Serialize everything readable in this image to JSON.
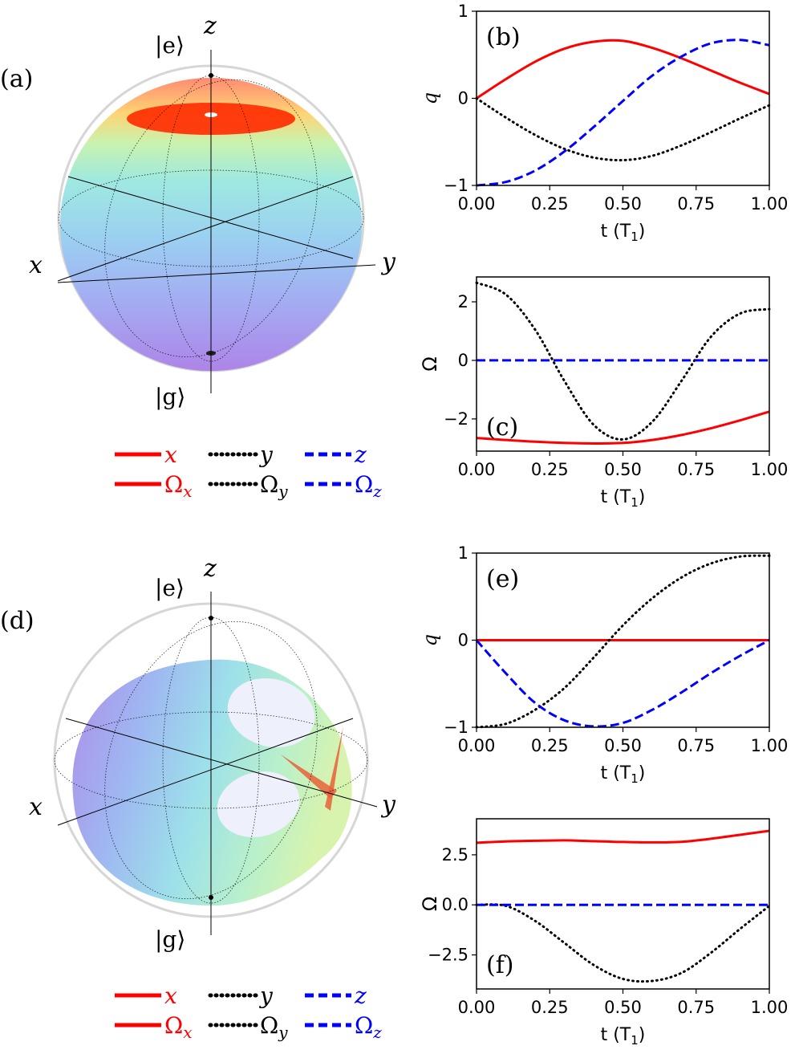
{
  "panels": {
    "a": {
      "label": "(a)",
      "axes": {
        "x": "x",
        "y": "y",
        "z": "z"
      },
      "top_state": "|e⟩",
      "bottom_state": "|g⟩"
    },
    "d": {
      "label": "(d)",
      "axes": {
        "x": "x",
        "y": "y",
        "z": "z"
      },
      "top_state": "|e⟩",
      "bottom_state": "|g⟩"
    }
  },
  "legend": {
    "row1": [
      {
        "text": "x",
        "color": "#ff0000",
        "style": "solid"
      },
      {
        "text": "y",
        "color": "#000000",
        "style": "dotted"
      },
      {
        "text": "z",
        "color": "#0000ff",
        "style": "dashed"
      }
    ],
    "row2": [
      {
        "text": "Ω",
        "sub": "x",
        "color": "#ff0000",
        "style": "solid"
      },
      {
        "text": "Ω",
        "sub": "y",
        "color": "#000000",
        "style": "dotted"
      },
      {
        "text": "Ω",
        "sub": "z",
        "color": "#0000ff",
        "style": "dashed"
      }
    ]
  },
  "colors": {
    "x": "#ff0000",
    "y": "#000000",
    "z": "#0000ff"
  },
  "chart_data": [
    {
      "id": "b",
      "type": "line",
      "panel_label": "(b)",
      "xlabel": "t (T",
      "xlabel_sub": "1",
      "xlabel_end": ")",
      "ylabel": "q",
      "xlim": [
        0,
        1
      ],
      "ylim": [
        -1,
        1
      ],
      "xticks": [
        "0.00",
        "0.25",
        "0.50",
        "0.75",
        "1.00"
      ],
      "yticks": [
        "−1",
        "0",
        "1"
      ],
      "x": [
        0,
        0.1,
        0.2,
        0.3,
        0.4,
        0.5,
        0.6,
        0.7,
        0.8,
        0.9,
        1.0
      ],
      "series": [
        {
          "key": "x",
          "values": [
            0.0,
            0.22,
            0.42,
            0.57,
            0.65,
            0.66,
            0.58,
            0.46,
            0.32,
            0.18,
            0.05
          ]
        },
        {
          "key": "y",
          "values": [
            0.0,
            -0.22,
            -0.42,
            -0.58,
            -0.68,
            -0.71,
            -0.66,
            -0.54,
            -0.39,
            -0.23,
            -0.08
          ]
        },
        {
          "key": "z",
          "values": [
            -1.0,
            -0.96,
            -0.83,
            -0.61,
            -0.33,
            -0.03,
            0.26,
            0.48,
            0.63,
            0.67,
            0.61
          ]
        }
      ]
    },
    {
      "id": "c",
      "type": "line",
      "panel_label": "(c)",
      "xlabel": "t (T",
      "xlabel_sub": "1",
      "xlabel_end": ")",
      "ylabel": "Ω",
      "xlim": [
        0,
        1
      ],
      "ylim": [
        -3.1,
        2.85
      ],
      "xticks": [
        "0.00",
        "0.25",
        "0.50",
        "0.75",
        "1.00"
      ],
      "yticks": [
        "−2",
        "0",
        "2"
      ],
      "x": [
        0,
        0.1,
        0.2,
        0.3,
        0.4,
        0.5,
        0.6,
        0.7,
        0.8,
        0.9,
        1.0
      ],
      "series": [
        {
          "key": "x",
          "values": [
            -2.65,
            -2.72,
            -2.78,
            -2.82,
            -2.84,
            -2.82,
            -2.72,
            -2.55,
            -2.32,
            -2.05,
            -1.75
          ]
        },
        {
          "key": "y",
          "values": [
            2.65,
            2.25,
            1.05,
            -0.7,
            -2.2,
            -2.7,
            -2.1,
            -0.7,
            0.8,
            1.6,
            1.75
          ]
        },
        {
          "key": "z",
          "values": [
            0,
            0,
            0,
            0,
            0,
            0,
            0,
            0,
            0,
            0,
            0
          ]
        }
      ]
    },
    {
      "id": "e",
      "type": "line",
      "panel_label": "(e)",
      "xlabel": "t (T",
      "xlabel_sub": "1",
      "xlabel_end": ")",
      "ylabel": "q",
      "xlim": [
        0,
        1
      ],
      "ylim": [
        -1,
        1
      ],
      "xticks": [
        "0.00",
        "0.25",
        "0.50",
        "0.75",
        "1.00"
      ],
      "yticks": [
        "−1",
        "0",
        "1"
      ],
      "x": [
        0,
        0.1,
        0.2,
        0.3,
        0.4,
        0.5,
        0.6,
        0.7,
        0.8,
        0.9,
        1.0
      ],
      "series": [
        {
          "key": "x",
          "values": [
            0,
            0,
            0,
            0,
            0,
            0,
            0,
            0,
            0,
            0,
            0
          ]
        },
        {
          "key": "y",
          "values": [
            -1.0,
            -0.96,
            -0.8,
            -0.55,
            -0.2,
            0.17,
            0.48,
            0.72,
            0.88,
            0.96,
            0.97
          ]
        },
        {
          "key": "z",
          "values": [
            0.0,
            -0.38,
            -0.72,
            -0.92,
            -0.99,
            -0.95,
            -0.8,
            -0.6,
            -0.38,
            -0.18,
            0.0
          ]
        }
      ]
    },
    {
      "id": "f",
      "type": "line",
      "panel_label": "(f)",
      "xlabel": "t (T",
      "xlabel_sub": "1",
      "xlabel_end": ")",
      "ylabel": "Ω",
      "xlim": [
        0,
        1
      ],
      "ylim": [
        -4.2,
        4.3
      ],
      "xticks": [
        "0.00",
        "0.25",
        "0.50",
        "0.75",
        "1.00"
      ],
      "yticks": [
        "−2.5",
        "0.0",
        "2.5"
      ],
      "x": [
        0,
        0.1,
        0.2,
        0.3,
        0.4,
        0.5,
        0.6,
        0.7,
        0.8,
        0.9,
        1.0
      ],
      "series": [
        {
          "key": "x",
          "values": [
            3.1,
            3.17,
            3.2,
            3.22,
            3.18,
            3.14,
            3.12,
            3.15,
            3.3,
            3.5,
            3.7
          ]
        },
        {
          "key": "y",
          "values": [
            0.0,
            -0.05,
            -0.8,
            -1.9,
            -3.0,
            -3.7,
            -3.8,
            -3.4,
            -2.4,
            -1.2,
            -0.05
          ]
        },
        {
          "key": "z",
          "values": [
            0,
            0,
            0,
            0,
            0,
            0,
            0,
            0,
            0,
            0,
            0
          ]
        }
      ]
    }
  ]
}
